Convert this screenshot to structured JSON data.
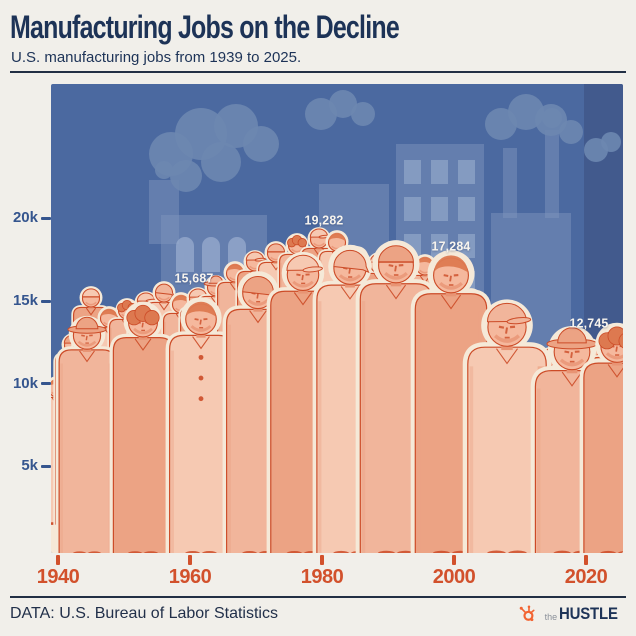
{
  "header": {
    "title": "Manufacturing Jobs on the Decline",
    "subtitle": "U.S. manufacturing jobs from 1939 to 2025."
  },
  "axes": {
    "y_labels": [
      "20k",
      "15k",
      "10k",
      "5k"
    ],
    "x_labels": [
      "1940",
      "1960",
      "1980",
      "2000",
      "2020"
    ]
  },
  "chart_data": {
    "type": "line",
    "title": "Manufacturing Jobs on the Decline",
    "subtitle": "U.S. manufacturing jobs from 1939 to 2025.",
    "x_range": [
      1939,
      2025
    ],
    "x_ticks": [
      1940,
      1960,
      1980,
      2000,
      2020
    ],
    "y_tick_labels": [
      "5k",
      "10k",
      "15k",
      "20k"
    ],
    "y_ticks_thousands": [
      5000,
      10000,
      15000,
      20000
    ],
    "ylim": [
      0,
      23000
    ],
    "units": "thousands of jobs",
    "grid": false,
    "legend": "none",
    "labeled_points": [
      {
        "label": "15,687",
        "value": 15687,
        "approx_year": 1957
      },
      {
        "label": "19,282",
        "value": 19282,
        "approx_year": 1979
      },
      {
        "label": "17,284",
        "value": 17284,
        "approx_year": 2000
      },
      {
        "label": "12,745",
        "value": 12745,
        "approx_year": 2025
      }
    ],
    "approx_series": {
      "x": [
        1939,
        1941,
        1943,
        1946,
        1950,
        1953,
        1957,
        1961,
        1965,
        1970,
        1974,
        1979,
        1983,
        1987,
        1991,
        1995,
        2000,
        2004,
        2008,
        2010,
        2015,
        2020,
        2025
      ],
      "values_thousands": [
        10000,
        13000,
        16500,
        14600,
        15200,
        16400,
        15687,
        16200,
        17000,
        18100,
        18700,
        19282,
        17400,
        17700,
        17400,
        17200,
        17284,
        15000,
        13800,
        11600,
        12200,
        12400,
        12745
      ]
    }
  },
  "footer": {
    "source": "DATA: U.S. Bureau of Labor Statistics",
    "brand_the": "the",
    "brand_name": "HUSTLE"
  },
  "icons": {
    "brand": "hubspot-sprocket-icon"
  },
  "palette": {
    "page_bg": "#F1EFEA",
    "ink": "#1D3357",
    "panel_blue": "#4B69A0",
    "panel_blue_dark": "#41598B",
    "building_blue": "#7E93BC",
    "window_blue": "#9FB2D2",
    "smoke_blue": "#6D87B0",
    "axis_orange": "#D2512C",
    "label_white": "#F7F4EE",
    "skin": "#F5B89D",
    "skin_shadow": "#E89474",
    "body_light": "#F6C9B2",
    "body_mid": "#F1B59B",
    "body_deep": "#ECA384",
    "outline": "#CC4B27",
    "halo": "#F5E9D8",
    "ground": "#F6E8D6",
    "ground_stripe": "#FBF2E3",
    "hair": "#DD7950",
    "logo_orange": "#F26331",
    "logo_gray": "#8A9099"
  }
}
